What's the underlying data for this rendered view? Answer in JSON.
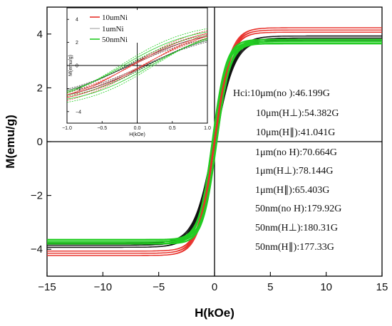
{
  "chart_data": [
    {
      "type": "line",
      "title": "",
      "xlabel": "H(kOe)",
      "ylabel": "M(emu/g)",
      "xlim": [
        -15,
        15
      ],
      "ylim": [
        -5,
        5
      ],
      "xticks": [
        -15,
        -10,
        -5,
        0,
        5,
        10,
        15
      ],
      "yticks": [
        -4,
        -2,
        0,
        2,
        4
      ],
      "xtick_labels": [
        "−15",
        "−10",
        "−5",
        "0",
        "5",
        "10",
        "15"
      ],
      "ytick_labels": [
        "−4",
        "−2",
        "0",
        "2",
        "4"
      ],
      "grid": false,
      "series": [
        {
          "name": "10umNi",
          "color": "#e8302a",
          "Ms": 4.15,
          "Hc_kOe": 0.046,
          "branch": "ascending and descending, field orientations no H / H⊥ / H∥"
        },
        {
          "name": "1umNi",
          "color": "#111111",
          "Ms": 3.85,
          "Hc_kOe": 0.071,
          "branch": "ascending and descending, field orientations no H / H⊥ / H∥"
        },
        {
          "name": "50nmNi",
          "color": "#22cc22",
          "Ms": 3.72,
          "Hc_kOe": 0.18,
          "branch": "ascending and descending, field orientations no H / H⊥ / H∥"
        }
      ],
      "annotations": [
        "Hci:10μm(no ):46.199G",
        "10μm(H⊥):54.382G",
        "10μm(H∥):41.041G",
        "1μm(no H):70.664G",
        "1μm(H⊥):78.144G",
        "1μm(H∥):65.403G",
        "50nm(no H):179.92G",
        "50nm(H⊥):180.31G",
        "50nm(H∥):177.33G"
      ]
    },
    {
      "type": "line",
      "title": "inset",
      "xlabel": "H(kOe)",
      "ylabel": "M(emu/g)",
      "xlim": [
        -1.0,
        1.0
      ],
      "ylim": [
        -5,
        5
      ],
      "xticks": [
        -1.0,
        -0.5,
        0.0,
        0.5,
        1.0
      ],
      "yticks": [
        -4,
        -2,
        0,
        2,
        4
      ],
      "xtick_labels": [
        "−1.0",
        "−0.5",
        "0.0",
        "0.5",
        "1.0"
      ],
      "ytick_labels": [
        "−4",
        "−2",
        "0",
        "2",
        "4"
      ],
      "legend": {
        "placement": "top-left",
        "entries": [
          "10umNi",
          "1umNi",
          "50nmNi"
        ]
      },
      "series": [
        {
          "name": "10umNi",
          "color": "#e8302a"
        },
        {
          "name": "1umNi",
          "color": "#111111"
        },
        {
          "name": "50nmNi",
          "color": "#22cc22"
        }
      ]
    }
  ]
}
